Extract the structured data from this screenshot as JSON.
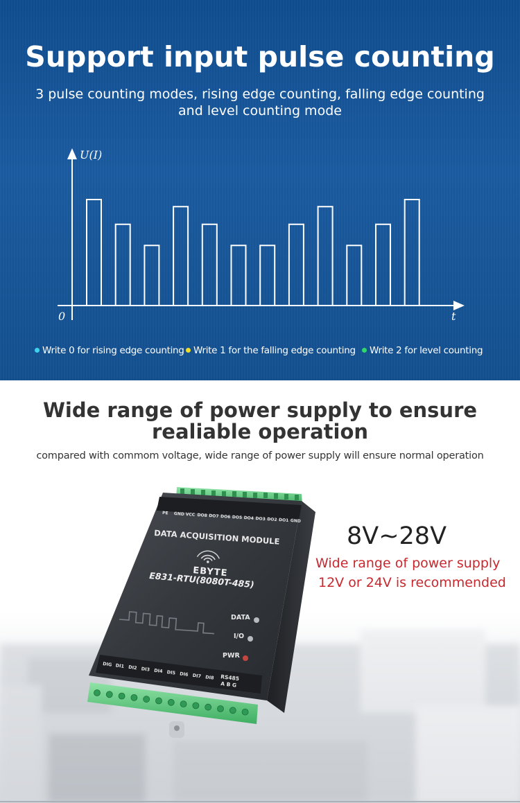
{
  "pulse_section": {
    "title": "Support input pulse counting",
    "subtitle_line1": "3 pulse counting modes, rising edge counting, falling edge counting",
    "subtitle_line2": "and level counting mode",
    "chart": {
      "y_axis_label": "U(I)",
      "x_axis_label": "t",
      "origin_label": "0",
      "pulse_levels": [
        3,
        2.3,
        1.7,
        2.8,
        2.3,
        1.7,
        1.7,
        2.3,
        2.8,
        1.7,
        2.3,
        3
      ]
    },
    "legend": [
      {
        "label": "Write 0 for rising edge counting",
        "color": "#3fd2ee"
      },
      {
        "label": "Write 1 for the falling edge counting",
        "color": "#f2dc2a"
      },
      {
        "label": "Write 2 for level counting",
        "color": "#2fd86a"
      }
    ]
  },
  "power_section": {
    "title_line1": "Wide range of power supply to ensure",
    "title_line2": "realiable operation",
    "subtitle": "compared with commom voltage, wide range of power supply will ensure normal operation",
    "voltage": "8V~28V",
    "note_line1": "Wide range of power supply",
    "note_line2": "12V or 24V is recommended"
  },
  "device": {
    "module_label": "DATA ACQUISITION MODULE",
    "brand": "EBYTE",
    "model": "E831-RTU(8080T-485)",
    "top_terminals": [
      "PE",
      "GND",
      "VCC",
      "DO8",
      "DO7",
      "DO6",
      "DO5",
      "DO4",
      "DO3",
      "DO2",
      "DO1",
      "GND"
    ],
    "bottom_terminals": [
      "DIG",
      "DI1",
      "DI2",
      "DI3",
      "DI4",
      "DI5",
      "DI6",
      "DI7",
      "DI8"
    ],
    "rs485_label": "RS485",
    "rs485_pins": "A B G",
    "led_data": "DATA",
    "led_io": "I/O",
    "led_pwr": "PWR"
  }
}
